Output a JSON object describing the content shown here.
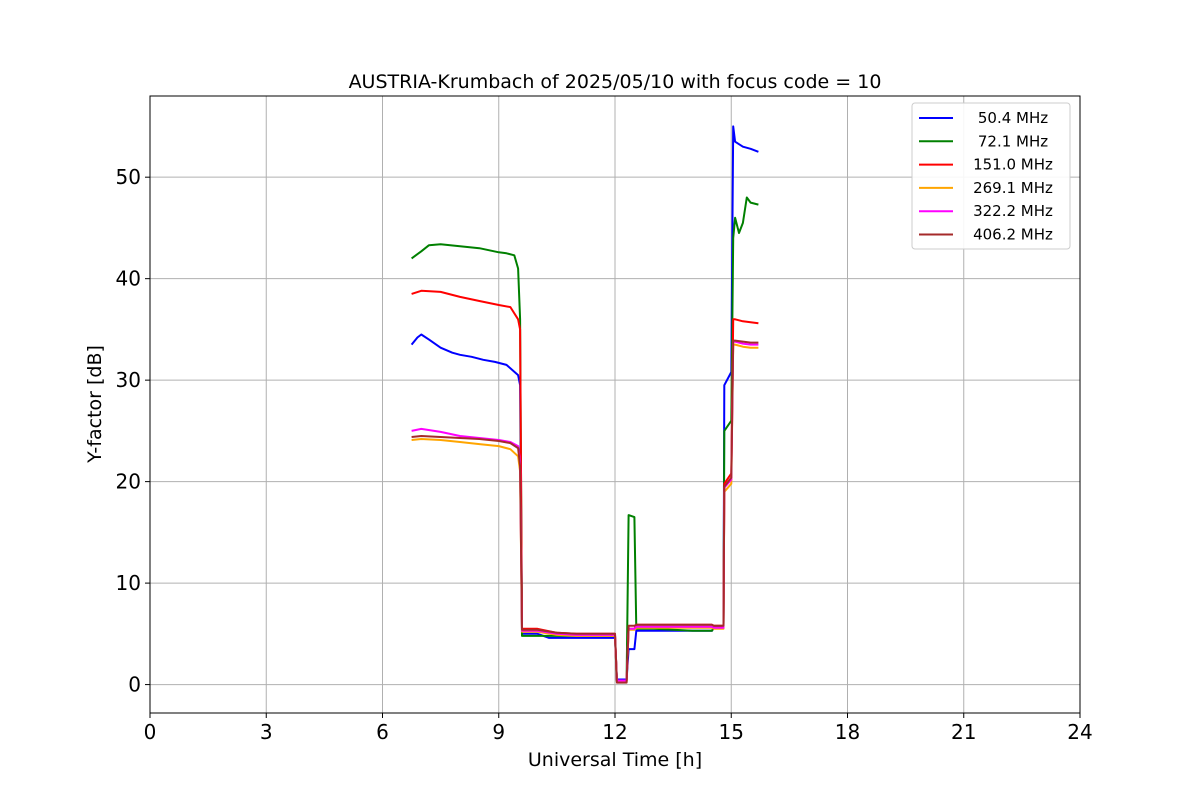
{
  "chart_data": {
    "type": "line",
    "title": "AUSTRIA-Krumbach of 2025/05/10 with focus code = 10",
    "xlabel": "Universal Time [h]",
    "ylabel": "Y-factor [dB]",
    "xlim": [
      0,
      24
    ],
    "ylim": [
      -2.8,
      58
    ],
    "xticks": [
      0,
      3,
      6,
      9,
      12,
      15,
      18,
      21,
      24
    ],
    "yticks": [
      0,
      10,
      20,
      30,
      40,
      50
    ],
    "grid": true,
    "legend_position": "top-right",
    "series": [
      {
        "name": "50.4 MHz",
        "color": "#0000ff",
        "x": [
          6.75,
          6.9,
          7.0,
          7.2,
          7.5,
          7.8,
          8.0,
          8.3,
          8.6,
          8.9,
          9.2,
          9.5,
          9.55,
          9.6,
          10.0,
          10.3,
          11.0,
          12.0,
          12.05,
          12.3,
          12.35,
          12.5,
          12.55,
          12.8,
          13.0,
          14.0,
          14.5,
          14.55,
          14.8,
          14.82,
          15.0,
          15.05,
          15.1,
          15.3,
          15.5,
          15.7
        ],
        "y": [
          33.5,
          34.2,
          34.5,
          34.0,
          33.2,
          32.7,
          32.5,
          32.3,
          32.0,
          31.8,
          31.5,
          30.5,
          29.5,
          5.0,
          5.0,
          4.6,
          4.6,
          4.6,
          0.5,
          0.5,
          3.5,
          3.5,
          5.3,
          5.3,
          5.3,
          5.3,
          5.3,
          5.6,
          5.6,
          29.5,
          30.8,
          55.0,
          53.5,
          53.0,
          52.8,
          52.5
        ]
      },
      {
        "name": "72.1 MHz",
        "color": "#008000",
        "x": [
          6.75,
          7.0,
          7.2,
          7.5,
          8.0,
          8.5,
          9.0,
          9.2,
          9.4,
          9.5,
          9.55,
          9.6,
          10.0,
          11.0,
          12.0,
          12.05,
          12.3,
          12.35,
          12.5,
          12.55,
          13.0,
          14.0,
          14.5,
          14.55,
          14.8,
          14.82,
          15.0,
          15.05,
          15.1,
          15.2,
          15.3,
          15.4,
          15.5,
          15.7
        ],
        "y": [
          42.0,
          42.7,
          43.3,
          43.4,
          43.2,
          43.0,
          42.6,
          42.5,
          42.3,
          41.0,
          36.0,
          4.8,
          4.8,
          4.8,
          4.8,
          0.3,
          0.3,
          16.7,
          16.5,
          5.5,
          5.5,
          5.3,
          5.3,
          5.6,
          5.6,
          25.0,
          26.0,
          44.0,
          46.0,
          44.5,
          45.5,
          48.0,
          47.5,
          47.3
        ]
      },
      {
        "name": "151.0 MHz",
        "color": "#ff0000",
        "x": [
          6.75,
          7.0,
          7.5,
          8.0,
          8.5,
          9.0,
          9.3,
          9.5,
          9.55,
          9.6,
          10.0,
          10.5,
          11.0,
          12.0,
          12.05,
          12.3,
          12.35,
          12.5,
          12.55,
          13.0,
          14.0,
          14.5,
          14.55,
          14.8,
          14.82,
          15.0,
          15.05,
          15.1,
          15.3,
          15.5,
          15.7
        ],
        "y": [
          38.5,
          38.8,
          38.7,
          38.2,
          37.8,
          37.4,
          37.2,
          36.0,
          35.0,
          5.5,
          5.5,
          5.1,
          5.0,
          5.0,
          0.4,
          0.4,
          5.5,
          5.5,
          5.9,
          5.9,
          5.9,
          5.9,
          5.8,
          5.8,
          19.8,
          20.8,
          36.0,
          36.0,
          35.8,
          35.7,
          35.6
        ]
      },
      {
        "name": "269.1 MHz",
        "color": "#ffa500",
        "x": [
          6.75,
          7.0,
          7.5,
          8.0,
          8.5,
          9.0,
          9.3,
          9.5,
          9.55,
          9.6,
          10.0,
          10.5,
          11.0,
          12.0,
          12.05,
          12.3,
          12.35,
          12.5,
          12.55,
          13.0,
          14.0,
          14.5,
          14.55,
          14.8,
          14.82,
          15.0,
          15.05,
          15.1,
          15.3,
          15.5,
          15.7
        ],
        "y": [
          24.1,
          24.2,
          24.1,
          23.9,
          23.7,
          23.5,
          23.2,
          22.5,
          21.0,
          5.2,
          5.2,
          4.9,
          4.8,
          4.8,
          0.3,
          0.3,
          5.4,
          5.4,
          5.6,
          5.6,
          5.6,
          5.6,
          5.5,
          5.5,
          19.0,
          19.8,
          33.5,
          33.5,
          33.3,
          33.2,
          33.2
        ]
      },
      {
        "name": "322.2 MHz",
        "color": "#ff00ff",
        "x": [
          6.75,
          7.0,
          7.5,
          8.0,
          8.5,
          9.0,
          9.3,
          9.5,
          9.55,
          9.6,
          10.0,
          10.5,
          11.0,
          12.0,
          12.05,
          12.3,
          12.35,
          12.5,
          12.55,
          13.0,
          14.0,
          14.5,
          14.55,
          14.8,
          14.82,
          15.0,
          15.05,
          15.1,
          15.3,
          15.5,
          15.7
        ],
        "y": [
          25.0,
          25.2,
          24.9,
          24.5,
          24.3,
          24.1,
          23.9,
          23.5,
          22.0,
          5.3,
          5.3,
          5.0,
          4.9,
          4.9,
          0.4,
          0.4,
          5.5,
          5.5,
          5.7,
          5.7,
          5.7,
          5.7,
          5.6,
          5.6,
          19.4,
          20.2,
          33.8,
          33.8,
          33.6,
          33.5,
          33.5
        ]
      },
      {
        "name": "406.2 MHz",
        "color": "#a52a2a",
        "x": [
          6.75,
          7.0,
          7.5,
          8.0,
          8.5,
          9.0,
          9.3,
          9.5,
          9.55,
          9.6,
          10.0,
          10.5,
          11.0,
          12.0,
          12.05,
          12.3,
          12.35,
          12.5,
          12.55,
          13.0,
          14.0,
          14.5,
          14.55,
          14.8,
          14.82,
          15.0,
          15.05,
          15.1,
          15.3,
          15.5,
          15.7
        ],
        "y": [
          24.4,
          24.5,
          24.4,
          24.3,
          24.2,
          24.0,
          23.8,
          23.3,
          21.5,
          5.4,
          5.4,
          5.1,
          5.0,
          5.0,
          0.2,
          0.2,
          5.8,
          5.8,
          5.9,
          5.9,
          5.9,
          5.9,
          5.8,
          5.8,
          19.5,
          20.4,
          33.9,
          33.9,
          33.8,
          33.7,
          33.7
        ]
      }
    ]
  }
}
